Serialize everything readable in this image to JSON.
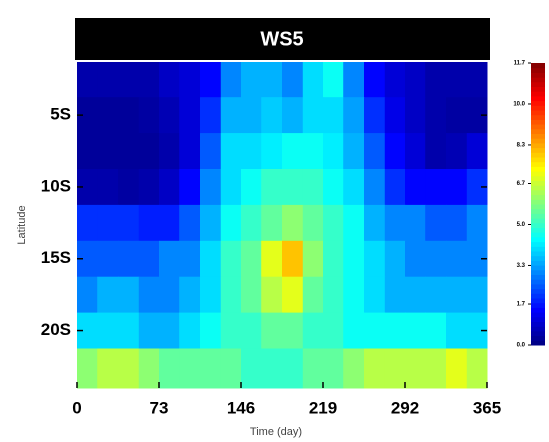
{
  "chart_data": {
    "type": "heatmap",
    "title": "WS5",
    "xlabel": "Time (day)",
    "ylabel": "Latitude",
    "xlim": [
      0,
      365
    ],
    "xticks": [
      0,
      73,
      146,
      219,
      292,
      365
    ],
    "ylim": [
      -24,
      -1.3
    ],
    "yticks": [
      {
        "value": -5,
        "label": "5S"
      },
      {
        "value": -10,
        "label": "10S"
      },
      {
        "value": -15,
        "label": "15S"
      },
      {
        "value": -20,
        "label": "20S"
      }
    ],
    "x": [
      9,
      27,
      46,
      64,
      82,
      100,
      119,
      137,
      155,
      173,
      192,
      210,
      228,
      246,
      265,
      283,
      301,
      319,
      338,
      356
    ],
    "y": [
      -2.5,
      -5,
      -7.5,
      -10,
      -12.5,
      -15,
      -17.5,
      -20,
      -22.5
    ],
    "z": [
      [
        0.5,
        0.5,
        0.5,
        0.5,
        0.8,
        1,
        1.5,
        3,
        3.5,
        3.5,
        3,
        4,
        4.5,
        3,
        1.5,
        1,
        0.8,
        0.5,
        0.5,
        0.5
      ],
      [
        0.3,
        0.3,
        0.3,
        0.4,
        0.6,
        1,
        2,
        3.5,
        3.5,
        3.8,
        3.5,
        4,
        4,
        3.3,
        2,
        1.2,
        0.8,
        0.5,
        0.4,
        0.4
      ],
      [
        0.3,
        0.3,
        0.3,
        0.3,
        0.5,
        1,
        2.5,
        4,
        4,
        4.2,
        4.5,
        4.5,
        4.2,
        3.5,
        2.5,
        1.5,
        1,
        0.5,
        0.6,
        1
      ],
      [
        0.5,
        0.5,
        0.4,
        0.5,
        0.8,
        1.5,
        3,
        4,
        4.5,
        5,
        5,
        5,
        4.5,
        4,
        3,
        2,
        1.5,
        1.5,
        1.5,
        2
      ],
      [
        2,
        2,
        2,
        1.8,
        1.8,
        2.5,
        3.5,
        4.5,
        5,
        5.5,
        6,
        5.5,
        5,
        4.5,
        3.5,
        3,
        3,
        2.5,
        2.5,
        3
      ],
      [
        2.5,
        2.5,
        2.5,
        2.5,
        3,
        3,
        4,
        5,
        5.5,
        7,
        8,
        6,
        5,
        4.5,
        4,
        3.5,
        3,
        3,
        3,
        3
      ],
      [
        3,
        3.5,
        3.5,
        3,
        3,
        3.5,
        4,
        5,
        5.5,
        6.5,
        7,
        5.5,
        5,
        4.5,
        4,
        3.5,
        3.5,
        3.5,
        3.5,
        3.5
      ],
      [
        4,
        4,
        4,
        3.5,
        3.5,
        4,
        4.5,
        5,
        5,
        5.5,
        5.5,
        5,
        5,
        4.5,
        4.5,
        4.5,
        4.5,
        4.5,
        4,
        4
      ],
      [
        6,
        6.5,
        6.5,
        6,
        5.5,
        5.5,
        5.5,
        5.5,
        5,
        5,
        5,
        5.5,
        5.5,
        6,
        6.5,
        6.5,
        6.5,
        6.5,
        7,
        6.5
      ]
    ],
    "cmap": "jet",
    "zlim": [
      0,
      11.7
    ],
    "zticks": [
      {
        "value": 0,
        "label": "0.0"
      },
      1.7,
      3.3,
      {
        "value": 5,
        "label": "5.0"
      },
      6.7,
      8.3,
      {
        "value": 10,
        "label": "10.0"
      },
      11.7
    ]
  }
}
